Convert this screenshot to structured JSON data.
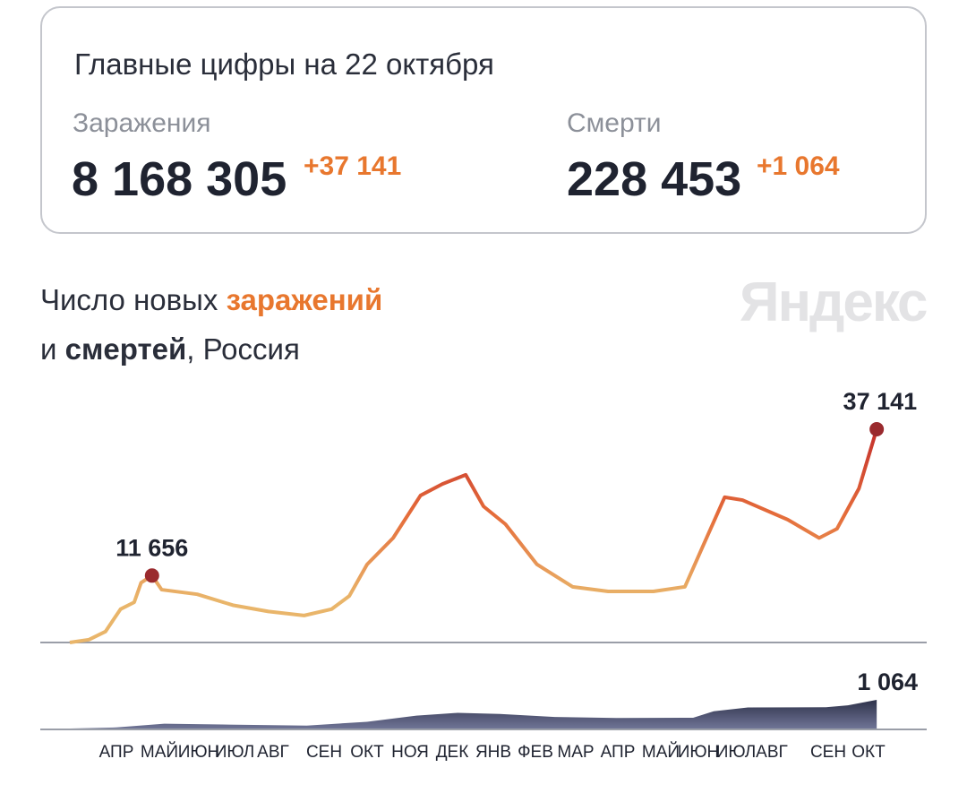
{
  "card": {
    "title": "Главные цифры на 22 октября",
    "cases_label": "Заражения",
    "cases_value": "8 168 305",
    "cases_delta": "+37 141",
    "deaths_label": "Смерти",
    "deaths_value": "228 453",
    "deaths_delta": "+1 064"
  },
  "chart_title": {
    "line1_prefix": "Число новых ",
    "line1_highlight": "заражений",
    "line2_prefix": "и ",
    "line2_bold": "смертей",
    "line2_suffix": ", Россия"
  },
  "logo": "Яндекс",
  "colors": {
    "accent": "#e8772e",
    "cases_low": "#e9b56a",
    "cases_high": "#c8372c",
    "deaths": "#5c6282",
    "marker": "#9a2a2e"
  },
  "chart_data": [
    {
      "type": "line",
      "series": [
        {
          "name": "заражений",
          "points": [
            [
              "2020-03-12",
              0
            ],
            [
              "2020-03-26",
              500
            ],
            [
              "2020-04-07",
              1900
            ],
            [
              "2020-04-18",
              5800
            ],
            [
              "2020-04-28",
              7000
            ],
            [
              "2020-05-03",
              10400
            ],
            [
              "2020-05-11",
              11656
            ],
            [
              "2020-05-18",
              9200
            ],
            [
              "2020-06-13",
              8400
            ],
            [
              "2020-07-09",
              6500
            ],
            [
              "2020-08-04",
              5400
            ],
            [
              "2020-08-30",
              4700
            ],
            [
              "2020-09-19",
              5800
            ],
            [
              "2020-10-02",
              8100
            ],
            [
              "2020-10-15",
              13600
            ],
            [
              "2020-11-03",
              18200
            ],
            [
              "2020-11-23",
              25600
            ],
            [
              "2020-12-09",
              27600
            ],
            [
              "2020-12-26",
              29200
            ],
            [
              "2021-01-08",
              23700
            ],
            [
              "2021-01-24",
              20600
            ],
            [
              "2021-02-16",
              13600
            ],
            [
              "2021-03-14",
              9700
            ],
            [
              "2021-04-09",
              8900
            ],
            [
              "2021-05-12",
              8900
            ],
            [
              "2021-06-04",
              9700
            ],
            [
              "2021-06-17",
              16700
            ],
            [
              "2021-07-03",
              25300
            ],
            [
              "2021-07-16",
              24800
            ],
            [
              "2021-08-18",
              21400
            ],
            [
              "2021-09-10",
              18200
            ],
            [
              "2021-09-23",
              19800
            ],
            [
              "2021-10-09",
              26800
            ],
            [
              "2021-10-22",
              37141
            ]
          ]
        }
      ],
      "annotations": [
        {
          "date": "2020-05-11",
          "label": "11 656"
        },
        {
          "date": "2021-10-22",
          "label": "37 141"
        }
      ],
      "ylim": [
        0,
        40000
      ]
    },
    {
      "type": "area",
      "series": [
        {
          "name": "смертей",
          "points": [
            [
              "2020-03-12",
              0
            ],
            [
              "2020-04-15",
              40
            ],
            [
              "2020-05-20",
              180
            ],
            [
              "2020-07-01",
              150
            ],
            [
              "2020-09-01",
              110
            ],
            [
              "2020-10-15",
              250
            ],
            [
              "2020-11-20",
              480
            ],
            [
              "2020-12-20",
              580
            ],
            [
              "2021-01-20",
              540
            ],
            [
              "2021-03-01",
              430
            ],
            [
              "2021-04-15",
              390
            ],
            [
              "2021-06-10",
              400
            ],
            [
              "2021-06-25",
              640
            ],
            [
              "2021-07-20",
              780
            ],
            [
              "2021-09-15",
              790
            ],
            [
              "2021-10-01",
              860
            ],
            [
              "2021-10-22",
              1064
            ]
          ]
        }
      ],
      "annotations": [
        {
          "date": "2021-10-22",
          "label": "1 064"
        }
      ],
      "ylim": [
        0,
        1500
      ]
    }
  ],
  "x_ticks": [
    "АПР",
    "МАЙ",
    "ИЮН",
    "ИЮЛ",
    "АВГ",
    "СЕН",
    "ОКТ",
    "НОЯ",
    "ДЕК",
    "ЯНВ",
    "ФЕВ",
    "МАР",
    "АПР",
    "МАЙ",
    "ИЮН",
    "ИЮЛ",
    "АВГ",
    "СЕН",
    "ОКТ"
  ]
}
